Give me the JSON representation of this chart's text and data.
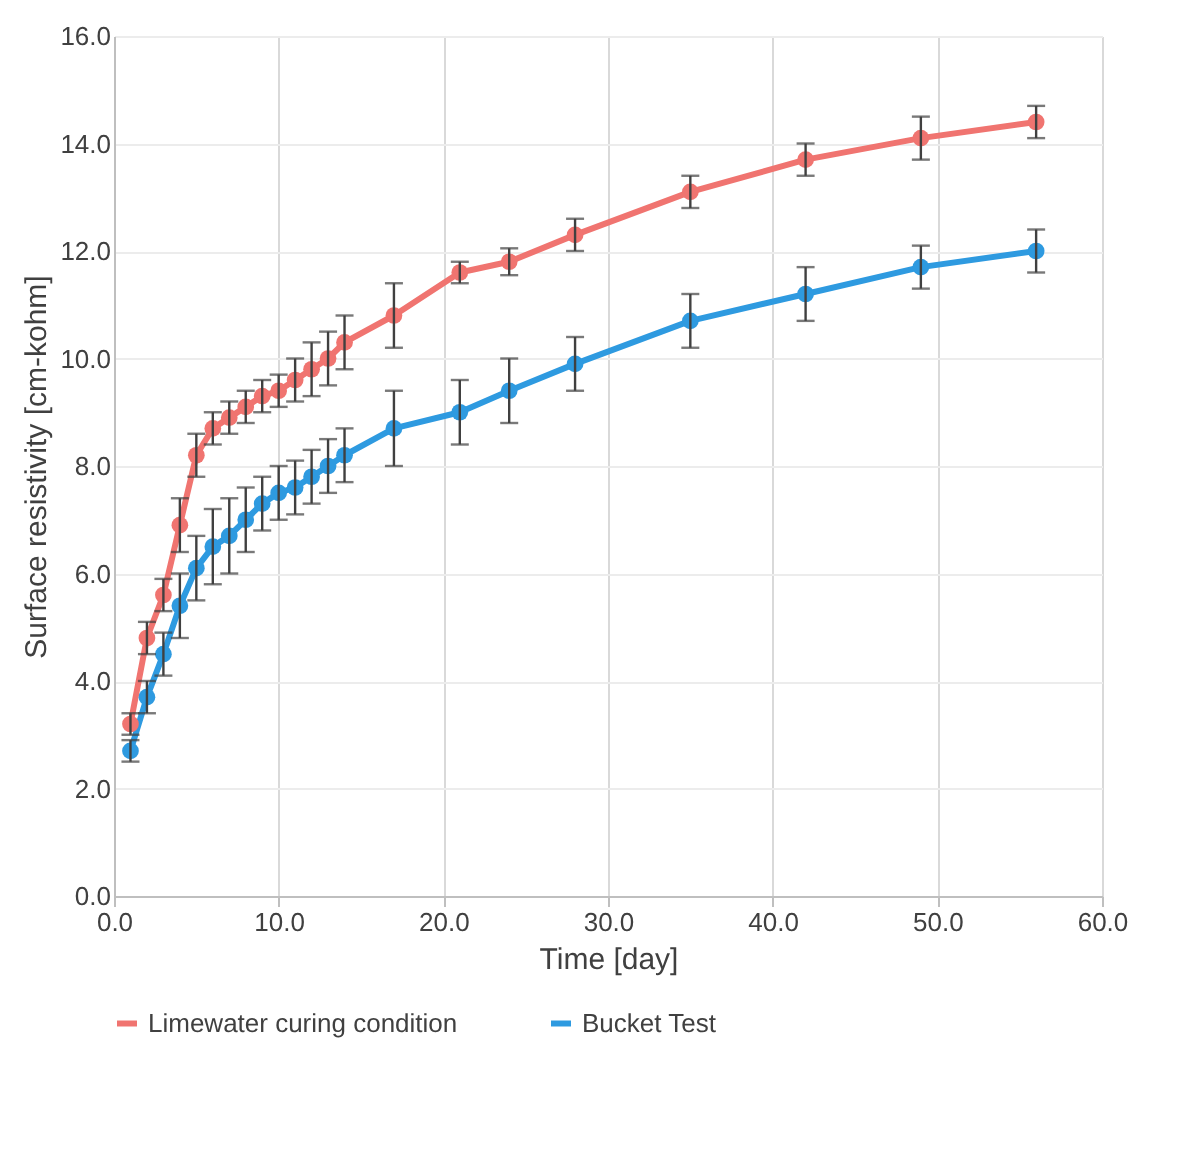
{
  "chart_data": {
    "type": "line",
    "xlabel": "Time [day]",
    "ylabel": "Surface resistivity [cm-kohm]",
    "x": [
      1,
      2,
      3,
      4,
      5,
      6,
      7,
      8,
      9,
      10,
      11,
      12,
      13,
      14,
      17,
      21,
      24,
      28,
      35,
      42,
      49,
      56
    ],
    "series": [
      {
        "name": "Limewater curing condition",
        "color": "#f07470",
        "values": [
          3.2,
          4.8,
          5.6,
          6.9,
          8.2,
          8.7,
          8.9,
          9.1,
          9.3,
          9.4,
          9.6,
          9.8,
          10.0,
          10.3,
          10.8,
          11.6,
          11.8,
          12.3,
          13.1,
          13.7,
          14.1,
          14.4
        ],
        "errors": [
          0.2,
          0.3,
          0.3,
          0.5,
          0.4,
          0.3,
          0.3,
          0.3,
          0.3,
          0.3,
          0.4,
          0.5,
          0.5,
          0.5,
          0.6,
          0.2,
          0.25,
          0.3,
          0.3,
          0.3,
          0.4,
          0.3
        ]
      },
      {
        "name": "Bucket Test",
        "color": "#2e9ae0",
        "values": [
          2.7,
          3.7,
          4.5,
          5.4,
          6.1,
          6.5,
          6.7,
          7.0,
          7.3,
          7.5,
          7.6,
          7.8,
          8.0,
          8.2,
          8.7,
          9.0,
          9.4,
          9.9,
          10.7,
          11.2,
          11.7,
          12.0
        ],
        "errors": [
          0.2,
          0.3,
          0.4,
          0.6,
          0.6,
          0.7,
          0.7,
          0.6,
          0.5,
          0.5,
          0.5,
          0.5,
          0.5,
          0.5,
          0.7,
          0.6,
          0.6,
          0.5,
          0.5,
          0.5,
          0.4,
          0.4
        ]
      }
    ],
    "xlim": [
      0,
      60
    ],
    "xticks": [
      {
        "value": 0,
        "label": "0.0"
      },
      {
        "value": 10,
        "label": "10.0"
      },
      {
        "value": 20,
        "label": "20.0"
      },
      {
        "value": 30,
        "label": "30.0"
      },
      {
        "value": 40,
        "label": "40.0"
      },
      {
        "value": 50,
        "label": "50.0"
      },
      {
        "value": 60,
        "label": "60.0"
      }
    ],
    "ylim": [
      0,
      16
    ],
    "yticks": [
      {
        "value": 0,
        "label": "0.0"
      },
      {
        "value": 2,
        "label": "2.0"
      },
      {
        "value": 4,
        "label": "4.0"
      },
      {
        "value": 6,
        "label": "6.0"
      },
      {
        "value": 8,
        "label": "8.0"
      },
      {
        "value": 10,
        "label": "10.0"
      },
      {
        "value": 12,
        "label": "12.0"
      },
      {
        "value": 14,
        "label": "14.0"
      },
      {
        "value": 16,
        "label": "16.0"
      }
    ],
    "grid": true,
    "legend": "bottom",
    "marker": "circle",
    "line_style": "solid"
  }
}
